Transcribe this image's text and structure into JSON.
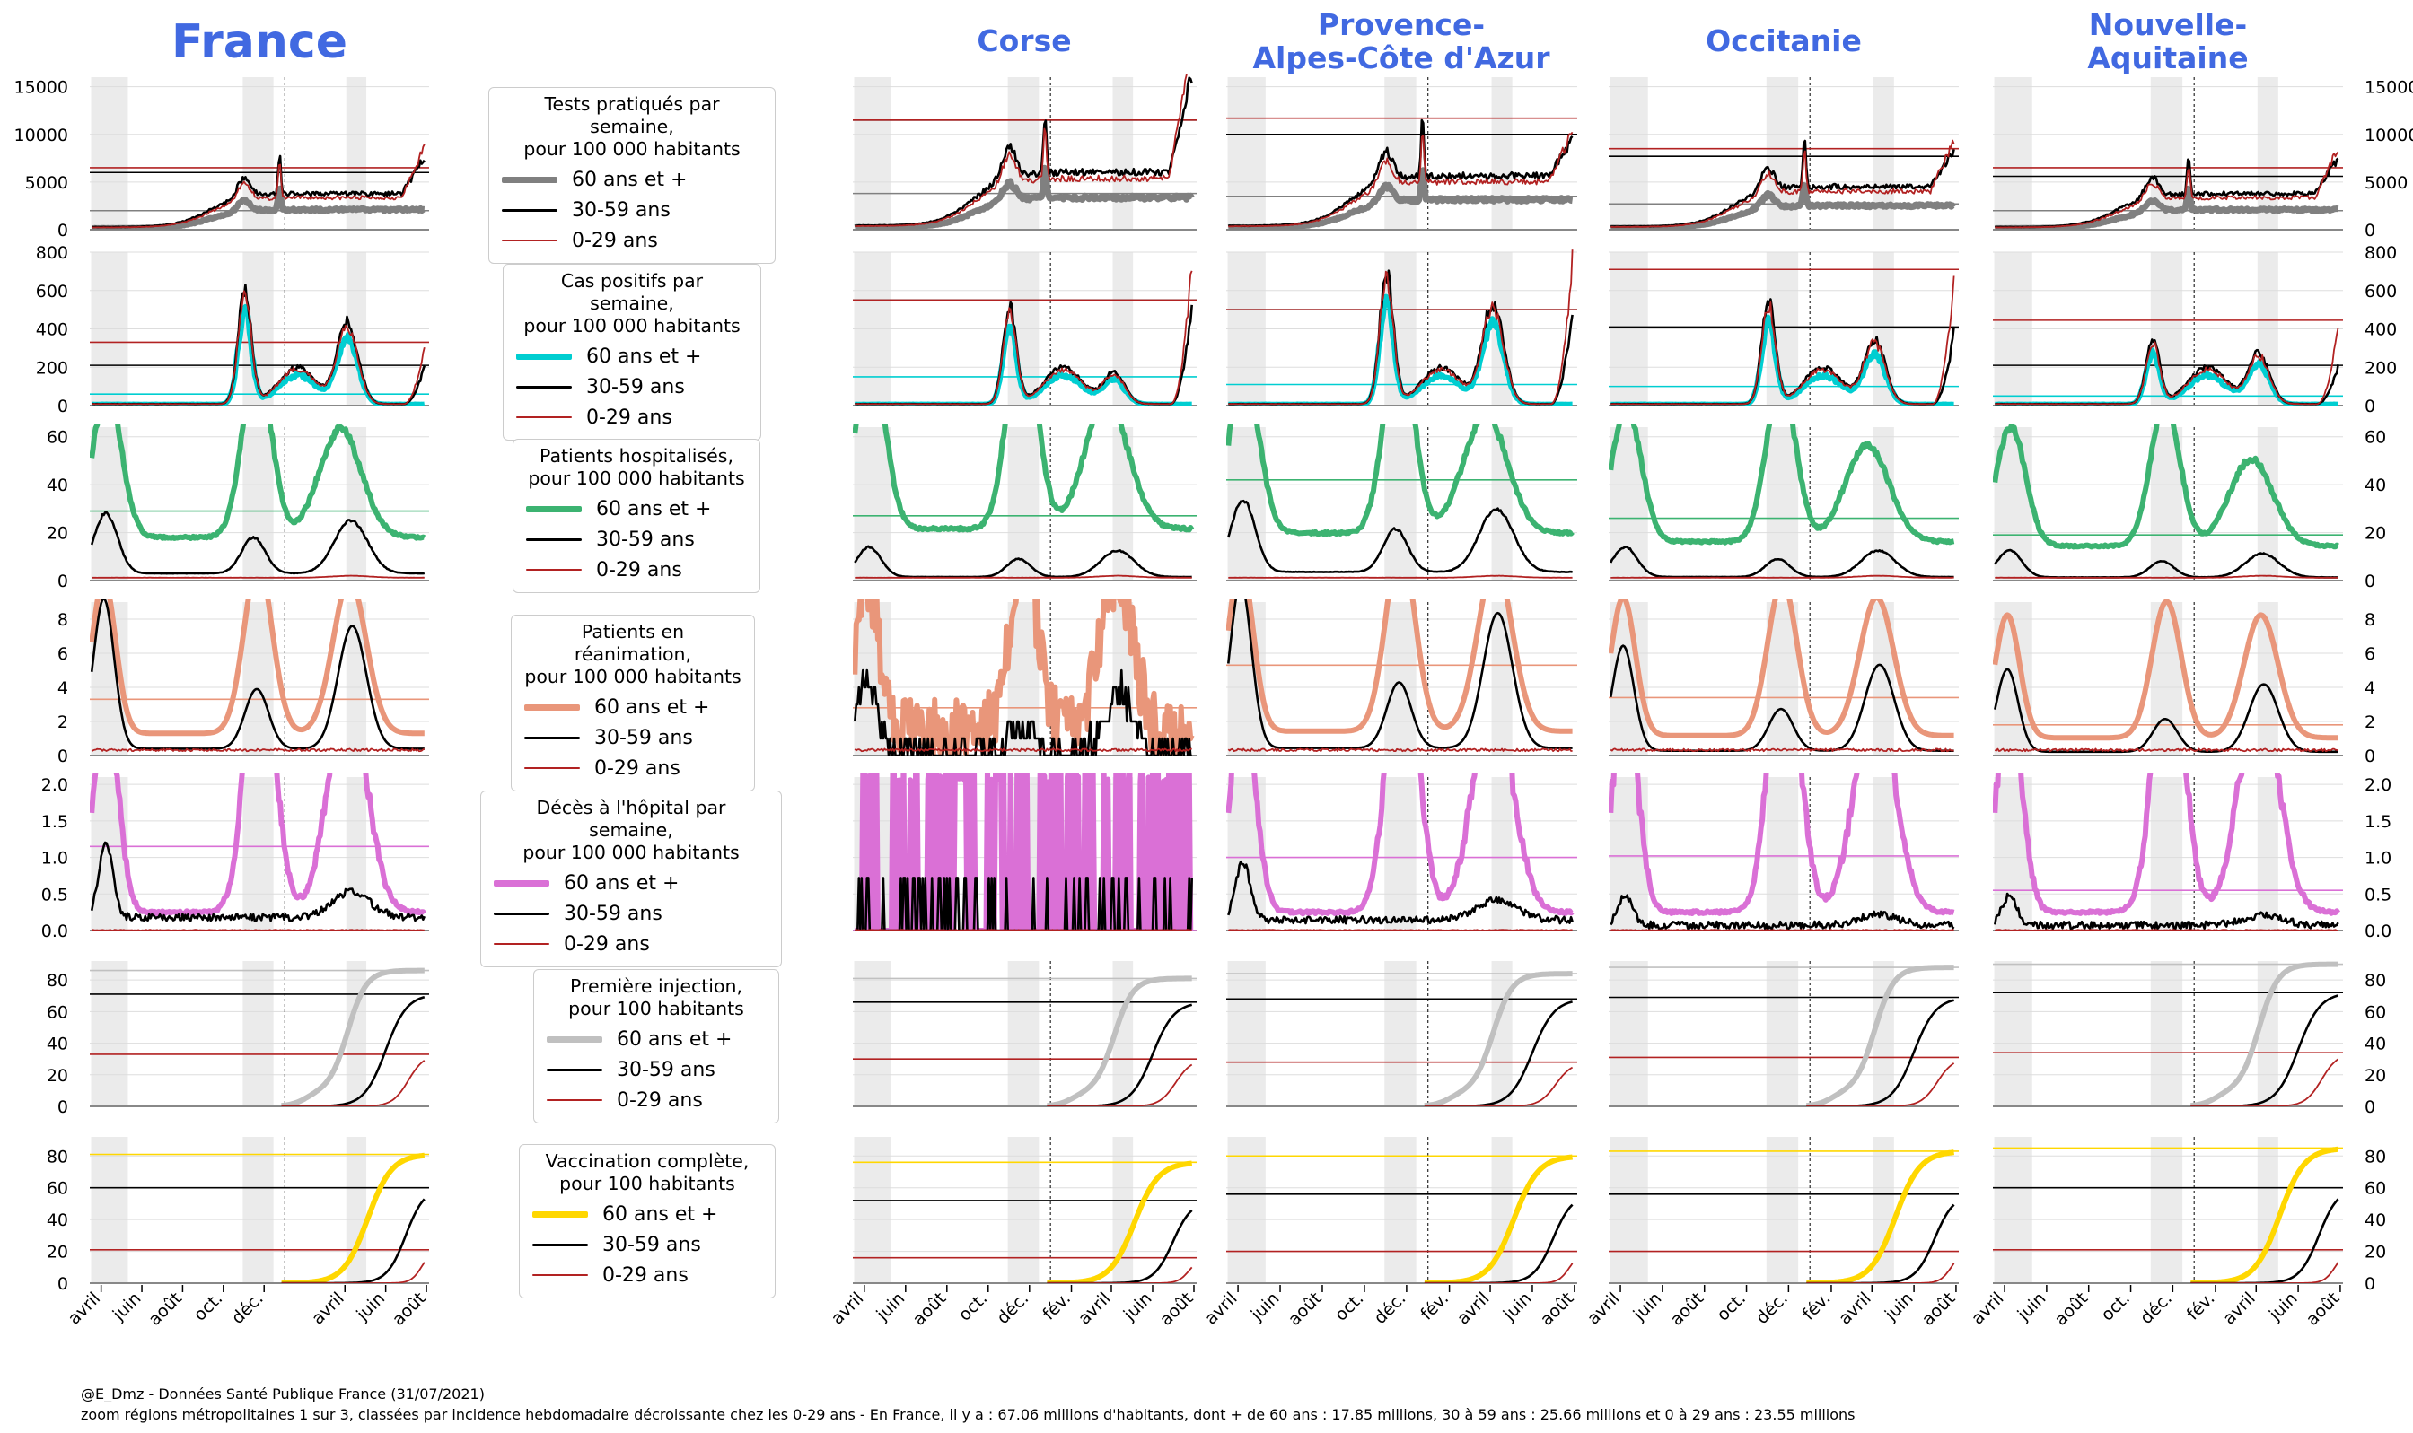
{
  "regions": [
    {
      "name": "France",
      "title_lines": [
        "France"
      ]
    },
    {
      "name": "Corse",
      "title_lines": [
        "Corse"
      ]
    },
    {
      "name": "Provence-Alpes-Côte d'Azur",
      "title_lines": [
        "Provence-",
        "Alpes-Côte d'Azur"
      ]
    },
    {
      "name": "Occitanie",
      "title_lines": [
        "Occitanie"
      ]
    },
    {
      "name": "Nouvelle-Aquitaine",
      "title_lines": [
        "Nouvelle-",
        "Aquitaine"
      ]
    }
  ],
  "x_tick_labels": [
    "avril",
    "juin",
    "août",
    "oct.",
    "déc.",
    "fév.",
    "avril",
    "juin",
    "août"
  ],
  "x_tick_labels_france": [
    "avril",
    "juin",
    "août",
    "oct.",
    "déc.",
    "avril",
    "juin",
    "août"
  ],
  "age_groups": [
    "60 ans et +",
    "30-59 ans",
    "0-29 ans"
  ],
  "legends": [
    {
      "title_lines": [
        "Tests pratiqués par semaine,",
        "pour 100 000 habitants"
      ],
      "color_60": "#808080",
      "labels": [
        "60 ans et +",
        "30-59 ans",
        "0-29 ans"
      ]
    },
    {
      "title_lines": [
        "Cas positifs par semaine,",
        "pour 100 000 habitants"
      ],
      "color_60": "#00ced1",
      "labels": [
        "60 ans et +",
        "30-59 ans",
        "0-29 ans"
      ]
    },
    {
      "title_lines": [
        "Patients hospitalisés,",
        "pour 100 000 habitants"
      ],
      "color_60": "#3cb371",
      "labels": [
        "60 ans et +",
        "30-59 ans",
        "0-29 ans"
      ]
    },
    {
      "title_lines": [
        "Patients en réanimation,",
        "pour 100 000 habitants"
      ],
      "color_60": "#e9967a",
      "labels": [
        "60 ans et +",
        "30-59 ans",
        "0-29 ans"
      ]
    },
    {
      "title_lines": [
        "Décès à l'hôpital par semaine,",
        "pour 100 000 habitants"
      ],
      "color_60": "#da70d6",
      "labels": [
        "60 ans et +",
        "30-59 ans",
        "0-29 ans"
      ]
    },
    {
      "title_lines": [
        "Première injection,",
        "pour 100 habitants"
      ],
      "color_60": "#c0c0c0",
      "labels": [
        "60 ans et +",
        "30-59 ans",
        "0-29 ans"
      ]
    },
    {
      "title_lines": [
        "Vaccination complète,",
        "pour 100 habitants"
      ],
      "color_60": "#ffd700",
      "labels": [
        "60 ans et +",
        "30-59 ans",
        "0-29 ans"
      ]
    }
  ],
  "colors": {
    "title": "#4169e1",
    "age_30_59": "#000000",
    "age_0_29": "#b22222",
    "shade": "#ebebeb",
    "grid": "#dddddd"
  },
  "footer": {
    "line1": "@E_Dmz - Données Santé Publique France (31/07/2021)",
    "line2": "zoom régions métropolitaines 1 sur 3, classées par incidence hebdomadaire décroissante chez les 0-29 ans - En France, il y a : 67.06 millions d'habitants, dont + de 60 ans : 17.85 millions, 30 à 59 ans : 25.66 millions et 0 à 29 ans : 23.55 millions"
  },
  "chart_data": {
    "type": "line",
    "x_range": [
      "2020-03-15",
      "2021-08-05"
    ],
    "shaded_periods": [
      [
        "2020-03-17",
        "2020-05-11"
      ],
      [
        "2020-10-30",
        "2020-12-15"
      ],
      [
        "2021-04-03",
        "2021-05-03"
      ]
    ],
    "vline_date": "2021-01-01",
    "legend_placement": "separate column",
    "grid": true,
    "panels": [
      {
        "metric": "Tests pratiqués par semaine, pour 100 000 habitants",
        "yticks": [
          0,
          5000,
          10000,
          15000
        ],
        "ylim": [
          0,
          16000
        ],
        "ref_levels": {
          "France": {
            "60": 2000,
            "30-59": 6000,
            "0-29": 6500
          },
          "Corse": {
            "60": 3800,
            "30-59": 11500,
            "0-29": 11500
          },
          "Provence-Alpes-Côte d'Azur": {
            "60": 3500,
            "30-59": 10000,
            "0-29": 11700
          },
          "Occitanie": {
            "60": 2700,
            "30-59": 7700,
            "0-29": 8500
          },
          "Nouvelle-Aquitaine": {
            "60": 2000,
            "30-59": 5600,
            "0-29": 6500
          }
        }
      },
      {
        "metric": "Cas positifs par semaine, pour 100 000 habitants",
        "yticks": [
          0,
          200,
          400,
          600,
          800
        ],
        "ylim": [
          0,
          800
        ],
        "ref_levels": {
          "France": {
            "60": 60,
            "30-59": 210,
            "0-29": 330
          },
          "Corse": {
            "60": 150,
            "30-59": 550,
            "0-29": 550
          },
          "Provence-Alpes-Côte d'Azur": {
            "60": 110,
            "30-59": 500,
            "0-29": 500
          },
          "Occitanie": {
            "60": 100,
            "30-59": 410,
            "0-29": 710
          },
          "Nouvelle-Aquitaine": {
            "60": 50,
            "30-59": 210,
            "0-29": 445
          }
        }
      },
      {
        "metric": "Patients hospitalisés, pour 100 000 habitants",
        "yticks": [
          0,
          20,
          40,
          60
        ],
        "ylim": [
          0,
          64
        ],
        "ref_levels": {
          "France": {
            "60": 29
          },
          "Corse": {
            "60": 27
          },
          "Provence-Alpes-Côte d'Azur": {
            "60": 42
          },
          "Occitanie": {
            "60": 26
          },
          "Nouvelle-Aquitaine": {
            "60": 19
          }
        }
      },
      {
        "metric": "Patients en réanimation, pour 100 000 habitants",
        "yticks": [
          0,
          2,
          4,
          6,
          8
        ],
        "ylim": [
          0,
          9
        ],
        "ref_levels": {
          "France": {
            "60": 3.3
          },
          "Corse": {
            "60": 2.8
          },
          "Provence-Alpes-Côte d'Azur": {
            "60": 5.3
          },
          "Occitanie": {
            "60": 3.4
          },
          "Nouvelle-Aquitaine": {
            "60": 1.8
          }
        }
      },
      {
        "metric": "Décès à l'hôpital par semaine, pour 100 000 habitants",
        "yticks": [
          0.0,
          0.5,
          1.0,
          1.5,
          2.0
        ],
        "ylim": [
          0,
          2.1
        ],
        "ref_levels": {
          "France": {
            "60": 1.15
          },
          "Corse": {
            "60": 0.0
          },
          "Provence-Alpes-Côte d'Azur": {
            "60": 1.0
          },
          "Occitanie": {
            "60": 1.02
          },
          "Nouvelle-Aquitaine": {
            "60": 0.55
          }
        }
      },
      {
        "metric": "Première injection, pour 100 habitants",
        "yticks": [
          0,
          20,
          40,
          60,
          80
        ],
        "ylim": [
          0,
          92
        ],
        "ref_levels": {
          "France": {
            "60": 86,
            "30-59": 71,
            "0-29": 33
          },
          "Corse": {
            "60": 81,
            "30-59": 66,
            "0-29": 30
          },
          "Provence-Alpes-Côte d'Azur": {
            "60": 84,
            "30-59": 68,
            "0-29": 28
          },
          "Occitanie": {
            "60": 88,
            "30-59": 69,
            "0-29": 31
          },
          "Nouvelle-Aquitaine": {
            "60": 90,
            "30-59": 72,
            "0-29": 34
          }
        }
      },
      {
        "metric": "Vaccination complète, pour 100 habitants",
        "yticks": [
          0,
          20,
          40,
          60,
          80
        ],
        "ylim": [
          0,
          92
        ],
        "ref_levels": {
          "France": {
            "60": 81,
            "30-59": 60,
            "0-29": 21
          },
          "Corse": {
            "60": 76,
            "30-59": 52,
            "0-29": 16
          },
          "Provence-Alpes-Côte d'Azur": {
            "60": 80,
            "30-59": 56,
            "0-29": 20
          },
          "Occitanie": {
            "60": 83,
            "30-59": 56,
            "0-29": 20
          },
          "Nouvelle-Aquitaine": {
            "60": 85,
            "30-59": 60,
            "0-29": 21
          }
        }
      }
    ]
  }
}
